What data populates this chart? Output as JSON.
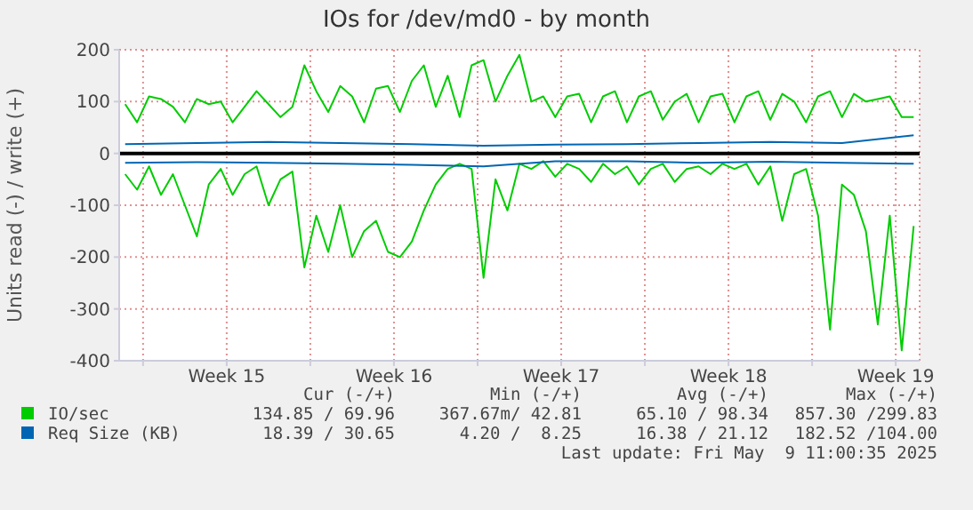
{
  "chart_data": {
    "type": "line",
    "title": "IOs for /dev/md0 - by month",
    "ylabel": "Units read (-) / write (+)",
    "x": [
      "2025-04-06T06:00",
      "2025-04-06T18:00",
      "2025-04-07T06:00",
      "2025-04-07T18:00",
      "2025-04-08T06:00",
      "2025-04-08T18:00",
      "2025-04-09T06:00",
      "2025-04-09T18:00",
      "2025-04-10T06:00",
      "2025-04-10T18:00",
      "2025-04-11T06:00",
      "2025-04-11T18:00",
      "2025-04-12T06:00",
      "2025-04-12T18:00",
      "2025-04-13T06:00",
      "2025-04-13T18:00",
      "2025-04-14T06:00",
      "2025-04-14T18:00",
      "2025-04-15T06:00",
      "2025-04-15T18:00",
      "2025-04-16T06:00",
      "2025-04-16T18:00",
      "2025-04-17T06:00",
      "2025-04-17T18:00",
      "2025-04-18T06:00",
      "2025-04-18T18:00",
      "2025-04-19T06:00",
      "2025-04-19T18:00",
      "2025-04-20T06:00",
      "2025-04-20T18:00",
      "2025-04-21T06:00",
      "2025-04-21T18:00",
      "2025-04-22T06:00",
      "2025-04-22T18:00",
      "2025-04-23T06:00",
      "2025-04-23T18:00",
      "2025-04-24T06:00",
      "2025-04-24T18:00",
      "2025-04-25T06:00",
      "2025-04-25T18:00",
      "2025-04-26T06:00",
      "2025-04-26T18:00",
      "2025-04-27T06:00",
      "2025-04-27T18:00",
      "2025-04-28T06:00",
      "2025-04-28T18:00",
      "2025-04-29T06:00",
      "2025-04-29T18:00",
      "2025-04-30T06:00",
      "2025-04-30T18:00",
      "2025-05-01T06:00",
      "2025-05-01T18:00",
      "2025-05-02T06:00",
      "2025-05-02T18:00",
      "2025-05-03T06:00",
      "2025-05-03T18:00",
      "2025-05-04T06:00",
      "2025-05-04T18:00",
      "2025-05-05T06:00",
      "2025-05-05T18:00",
      "2025-05-06T06:00",
      "2025-05-06T18:00",
      "2025-05-07T06:00",
      "2025-05-07T18:00",
      "2025-05-08T06:00",
      "2025-05-08T18:00",
      "2025-05-09T06:00"
    ],
    "series": [
      {
        "name": "IO/sec",
        "color": "#00cc00",
        "values": [
          95,
          60,
          110,
          105,
          90,
          60,
          105,
          95,
          100,
          60,
          90,
          120,
          95,
          70,
          90,
          170,
          120,
          80,
          130,
          110,
          60,
          125,
          130,
          80,
          140,
          170,
          90,
          150,
          70,
          170,
          180,
          100,
          150,
          190,
          100,
          110,
          70,
          110,
          115,
          60,
          110,
          120,
          60,
          110,
          120,
          65,
          100,
          115,
          60,
          110,
          115,
          60,
          110,
          120,
          65,
          115,
          100,
          60,
          110,
          120,
          70,
          115,
          100,
          105,
          110,
          70,
          70
        ]
      },
      {
        "color": "#00cc00",
        "values": [
          -40,
          -70,
          -25,
          -80,
          -40,
          -100,
          -160,
          -60,
          -30,
          -80,
          -40,
          -25,
          -100,
          -50,
          -35,
          -220,
          -120,
          -190,
          -100,
          -200,
          -150,
          -130,
          -190,
          -200,
          -170,
          -110,
          -60,
          -30,
          -20,
          -30,
          -240,
          -50,
          -110,
          -20,
          -30,
          -15,
          -45,
          -20,
          -30,
          -55,
          -20,
          -40,
          -25,
          -60,
          -30,
          -20,
          -55,
          -30,
          -25,
          -40,
          -20,
          -30,
          -20,
          -60,
          -25,
          -130,
          -40,
          -30,
          -120,
          -340,
          -60,
          -80,
          -150,
          -330,
          -120,
          -380,
          -140
        ]
      },
      {
        "name": "Req Size (KB)",
        "color": "#0066b3",
        "x": [
          "2025-04-06T06:00",
          "2025-04-09T06:00",
          "2025-04-12T06:00",
          "2025-04-15T06:00",
          "2025-04-18T06:00",
          "2025-04-21T06:00",
          "2025-04-24T06:00",
          "2025-04-27T06:00",
          "2025-04-30T06:00",
          "2025-05-03T06:00",
          "2025-05-06T06:00",
          "2025-05-09T06:00"
        ],
        "values": [
          18,
          20,
          22,
          20,
          18,
          15,
          17,
          18,
          20,
          22,
          20,
          35
        ]
      },
      {
        "color": "#0066b3",
        "x": [
          "2025-04-06T06:00",
          "2025-04-09T06:00",
          "2025-04-12T06:00",
          "2025-04-15T06:00",
          "2025-04-18T06:00",
          "2025-04-21T06:00",
          "2025-04-24T06:00",
          "2025-04-27T06:00",
          "2025-04-30T06:00",
          "2025-05-03T06:00",
          "2025-05-06T06:00",
          "2025-05-09T06:00"
        ],
        "values": [
          -18,
          -17,
          -18,
          -20,
          -22,
          -25,
          -15,
          -15,
          -18,
          -16,
          -18,
          -20
        ]
      }
    ],
    "xlim": [
      "2025-04-06T00:00",
      "2025-05-09T12:00"
    ],
    "xticks": [
      {
        "value": "2025-04-07",
        "label": null
      },
      {
        "value": "2025-04-10T12:00",
        "label": "Week 15"
      },
      {
        "value": "2025-04-14",
        "label": null
      },
      {
        "value": "2025-04-17T12:00",
        "label": "Week 16"
      },
      {
        "value": "2025-04-21",
        "label": null
      },
      {
        "value": "2025-04-24T12:00",
        "label": "Week 17"
      },
      {
        "value": "2025-04-28",
        "label": null
      },
      {
        "value": "2025-05-01T12:00",
        "label": "Week 18"
      },
      {
        "value": "2025-05-05",
        "label": null
      },
      {
        "value": "2025-05-08T12:00",
        "label": "Week 19"
      }
    ],
    "ylim": [
      -400,
      200
    ],
    "yticks": [
      -400,
      -300,
      -200,
      -100,
      0,
      100,
      200
    ],
    "grid": true,
    "legend": "bottom",
    "marker": "none",
    "line_style": "solid",
    "ref_lines": [
      {
        "axis": "y",
        "value": 0,
        "color": "#000000"
      }
    ],
    "annotations": [
      "Cur (-/+)",
      "Min (-/+)",
      "Avg (-/+)",
      "Max (-/+)",
      "134.85 / 69.96",
      "367.67m/ 42.81",
      "65.10 / 98.34",
      "857.30 /299.83",
      "18.39 / 30.65",
      "4.20 /  8.25",
      "16.38 / 21.12",
      "182.52 /104.00",
      "Last update: Fri May  9 11:00:35 2025"
    ]
  }
}
